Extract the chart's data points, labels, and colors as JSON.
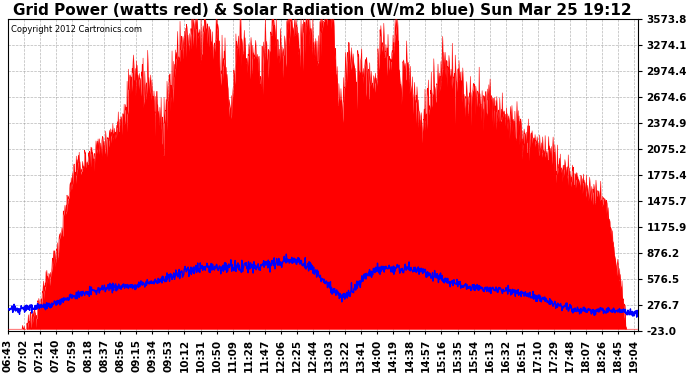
{
  "title": "Grid Power (watts red) & Solar Radiation (W/m2 blue) Sun Mar 25 19:12",
  "copyright_text": "Copyright 2012 Cartronics.com",
  "y_min": -23.0,
  "y_max": 3573.8,
  "y_ticks": [
    -23.0,
    276.7,
    576.5,
    876.2,
    1175.9,
    1475.7,
    1775.4,
    2075.2,
    2374.9,
    2674.6,
    2974.4,
    3274.1,
    3573.8
  ],
  "background_color": "#ffffff",
  "grid_color": "#888888",
  "red_color": "#ff0000",
  "blue_color": "#0000ff",
  "title_fontsize": 11,
  "tick_fontsize": 7.5,
  "x_start_min": 403,
  "x_end_min": 1148
}
